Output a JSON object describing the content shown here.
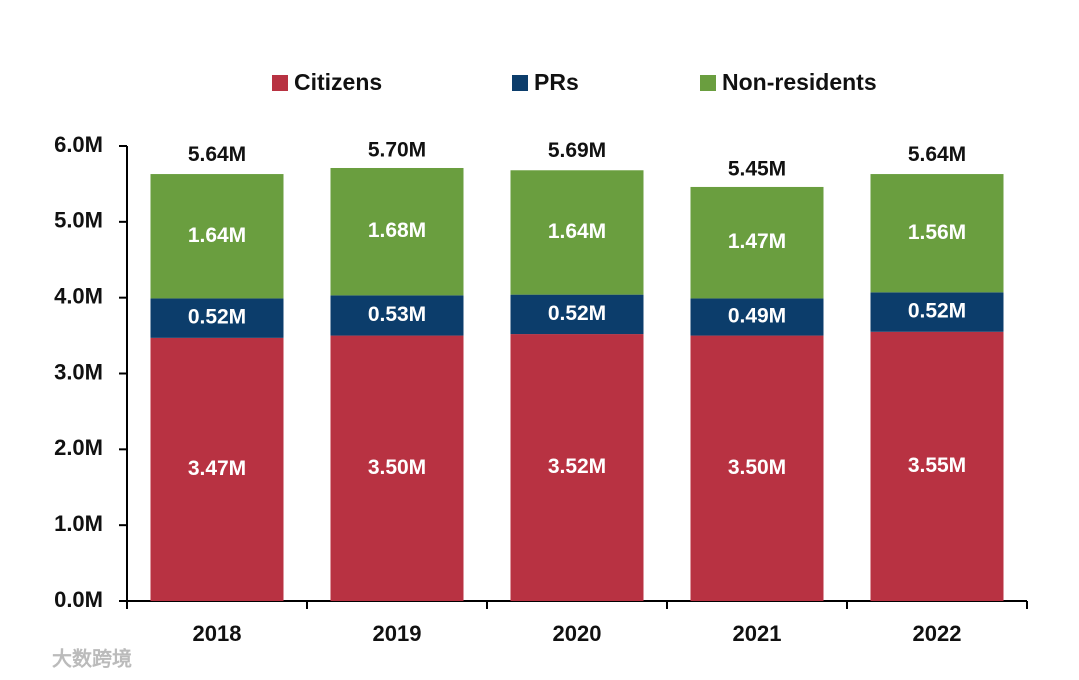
{
  "chart_data": {
    "type": "stacked-bar",
    "categories": [
      "2018",
      "2019",
      "2020",
      "2021",
      "2022"
    ],
    "series": [
      {
        "name": "Citizens",
        "color": "#b83242",
        "values": [
          3.47,
          3.5,
          3.52,
          3.5,
          3.55
        ],
        "value_labels": [
          "3.47M",
          "3.50M",
          "3.52M",
          "3.50M",
          "3.55M"
        ]
      },
      {
        "name": "PRs",
        "color": "#0c3d6b",
        "values": [
          0.52,
          0.53,
          0.52,
          0.49,
          0.52
        ],
        "value_labels": [
          "0.52M",
          "0.53M",
          "0.52M",
          "0.49M",
          "0.52M"
        ]
      },
      {
        "name": "Non-residents",
        "color": "#6a9e3f",
        "values": [
          1.64,
          1.68,
          1.64,
          1.47,
          1.56
        ],
        "value_labels": [
          "1.64M",
          "1.68M",
          "1.64M",
          "1.47M",
          "1.56M"
        ]
      }
    ],
    "totals": {
      "values": [
        5.64,
        5.7,
        5.69,
        5.45,
        5.64
      ],
      "value_labels": [
        "5.64M",
        "5.70M",
        "5.69M",
        "5.45M",
        "5.64M"
      ]
    },
    "ylim": [
      0,
      6
    ],
    "yticks": [
      {
        "value": 0,
        "label": "0.0M"
      },
      {
        "value": 1,
        "label": "1.0M"
      },
      {
        "value": 2,
        "label": "2.0M"
      },
      {
        "value": 3,
        "label": "3.0M"
      },
      {
        "value": 4,
        "label": "4.0M"
      },
      {
        "value": 5,
        "label": "5.0M"
      },
      {
        "value": 6,
        "label": "6.0M"
      }
    ],
    "legend": "top",
    "watermark": "大数跨境"
  }
}
